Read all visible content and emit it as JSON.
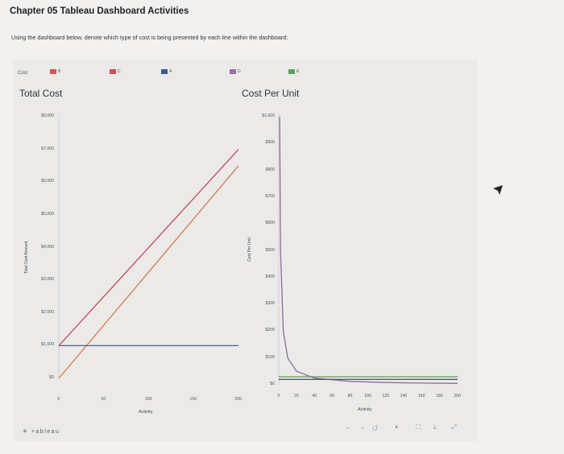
{
  "doc": {
    "title": "Chapter 05 Tableau Dashboard Activities",
    "instruction": "Using the dashboard below, denote which type of cost is being presented by each line within the dashboard:"
  },
  "legend": {
    "title": "Cost",
    "items": [
      {
        "label": "B",
        "color": "#d9534f"
      },
      {
        "label": "C",
        "color": "#d24e55"
      },
      {
        "label": "A",
        "color": "#3b5b95"
      },
      {
        "label": "D",
        "color": "#9b6fa7"
      },
      {
        "label": "E",
        "color": "#58a05a"
      }
    ]
  },
  "branding": {
    "tableau": "+ableau"
  },
  "toolbar": {
    "undo": "←",
    "redo": "→",
    "revert": "⭯",
    "pause": "⏸",
    "share": "⛶",
    "download": "⤓",
    "fullscreen": "⤢"
  },
  "chart_data": [
    {
      "type": "line",
      "title": "Total Cost",
      "xlabel": "Activity",
      "ylabel": "Total Cost Amount",
      "xlim": [
        0,
        200
      ],
      "ylim": [
        0,
        8000
      ],
      "x_ticks": [
        "0",
        "50",
        "100",
        "150",
        "200"
      ],
      "y_ticks": [
        "$0",
        "$1,000",
        "$2,000",
        "$3,000",
        "$4,000",
        "$5,000",
        "$6,000",
        "$7,000",
        "$8,000"
      ],
      "series": [
        {
          "color": "#c8475a",
          "x": [
            0,
            200
          ],
          "y": [
            1000,
            7000
          ]
        },
        {
          "color": "#d67a4a",
          "x": [
            0,
            200
          ],
          "y": [
            0,
            6500
          ]
        },
        {
          "color": "#4a5f8f",
          "x": [
            0,
            200
          ],
          "y": [
            1000,
            1000
          ]
        }
      ]
    },
    {
      "type": "line",
      "title": "Cost Per Unit",
      "xlabel": "Activity",
      "ylabel": "Cost Per Unit",
      "xlim": [
        0,
        200
      ],
      "ylim": [
        0,
        1000
      ],
      "x_ticks": [
        "0",
        "20",
        "40",
        "60",
        "80",
        "100",
        "120",
        "140",
        "160",
        "180",
        "200"
      ],
      "y_ticks": [
        "$0",
        "$100",
        "$200",
        "$300",
        "$400",
        "$500",
        "$600",
        "$700",
        "$800",
        "$900",
        "$1,000"
      ],
      "series": [
        {
          "color": "#8e6a9c",
          "x": [
            1,
            2,
            5,
            10,
            20,
            40,
            80,
            120,
            160,
            200
          ],
          "y": [
            1000,
            500,
            200,
            100,
            50,
            25,
            12.5,
            8.3,
            6.3,
            5
          ]
        },
        {
          "color": "#5c9a55",
          "x": [
            0,
            200
          ],
          "y": [
            30,
            30
          ]
        },
        {
          "color": "#555a6a",
          "x": [
            0,
            200
          ],
          "y": [
            20,
            20
          ]
        }
      ]
    }
  ]
}
